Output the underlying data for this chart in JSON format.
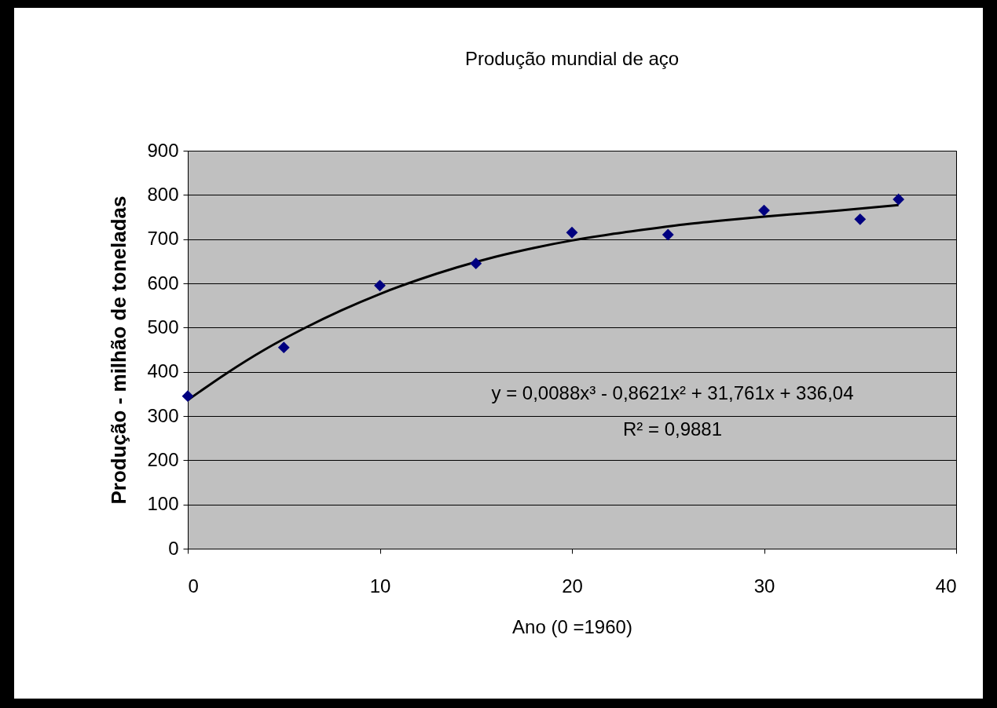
{
  "chart_data": {
    "type": "scatter",
    "title": "Produção mundial de aço",
    "xlabel": "Ano (0 =1960)",
    "ylabel": "Produção - milhão de toneladas",
    "xlim": [
      0,
      40
    ],
    "xticks": [
      0,
      10,
      20,
      30,
      40
    ],
    "ylim": [
      0,
      900
    ],
    "yticks": [
      0,
      100,
      200,
      300,
      400,
      500,
      600,
      700,
      800,
      900
    ],
    "grid": "y",
    "series": [
      {
        "color": "#000080",
        "marker": "diamond",
        "x": [
          0,
          5,
          10,
          15,
          20,
          25,
          30,
          35,
          37
        ],
        "values": [
          345,
          455,
          595,
          645,
          715,
          710,
          765,
          745,
          790
        ]
      },
      {
        "type": "line",
        "color": "#000000",
        "marker": "none",
        "x": [
          0,
          2,
          4,
          6,
          8,
          10,
          12,
          14,
          16,
          18,
          20,
          22,
          24,
          26,
          28,
          30,
          32,
          34,
          36,
          37
        ],
        "values": [
          336,
          396,
          450,
          497,
          539,
          576,
          608,
          636,
          660,
          680,
          697,
          711,
          723,
          734,
          743,
          751,
          758,
          765,
          773,
          777
        ]
      }
    ],
    "annotations": [
      "y = 0,0088x³ - 0,8621x² + 31,761x + 336,04",
      "R² = 0,9881"
    ]
  }
}
